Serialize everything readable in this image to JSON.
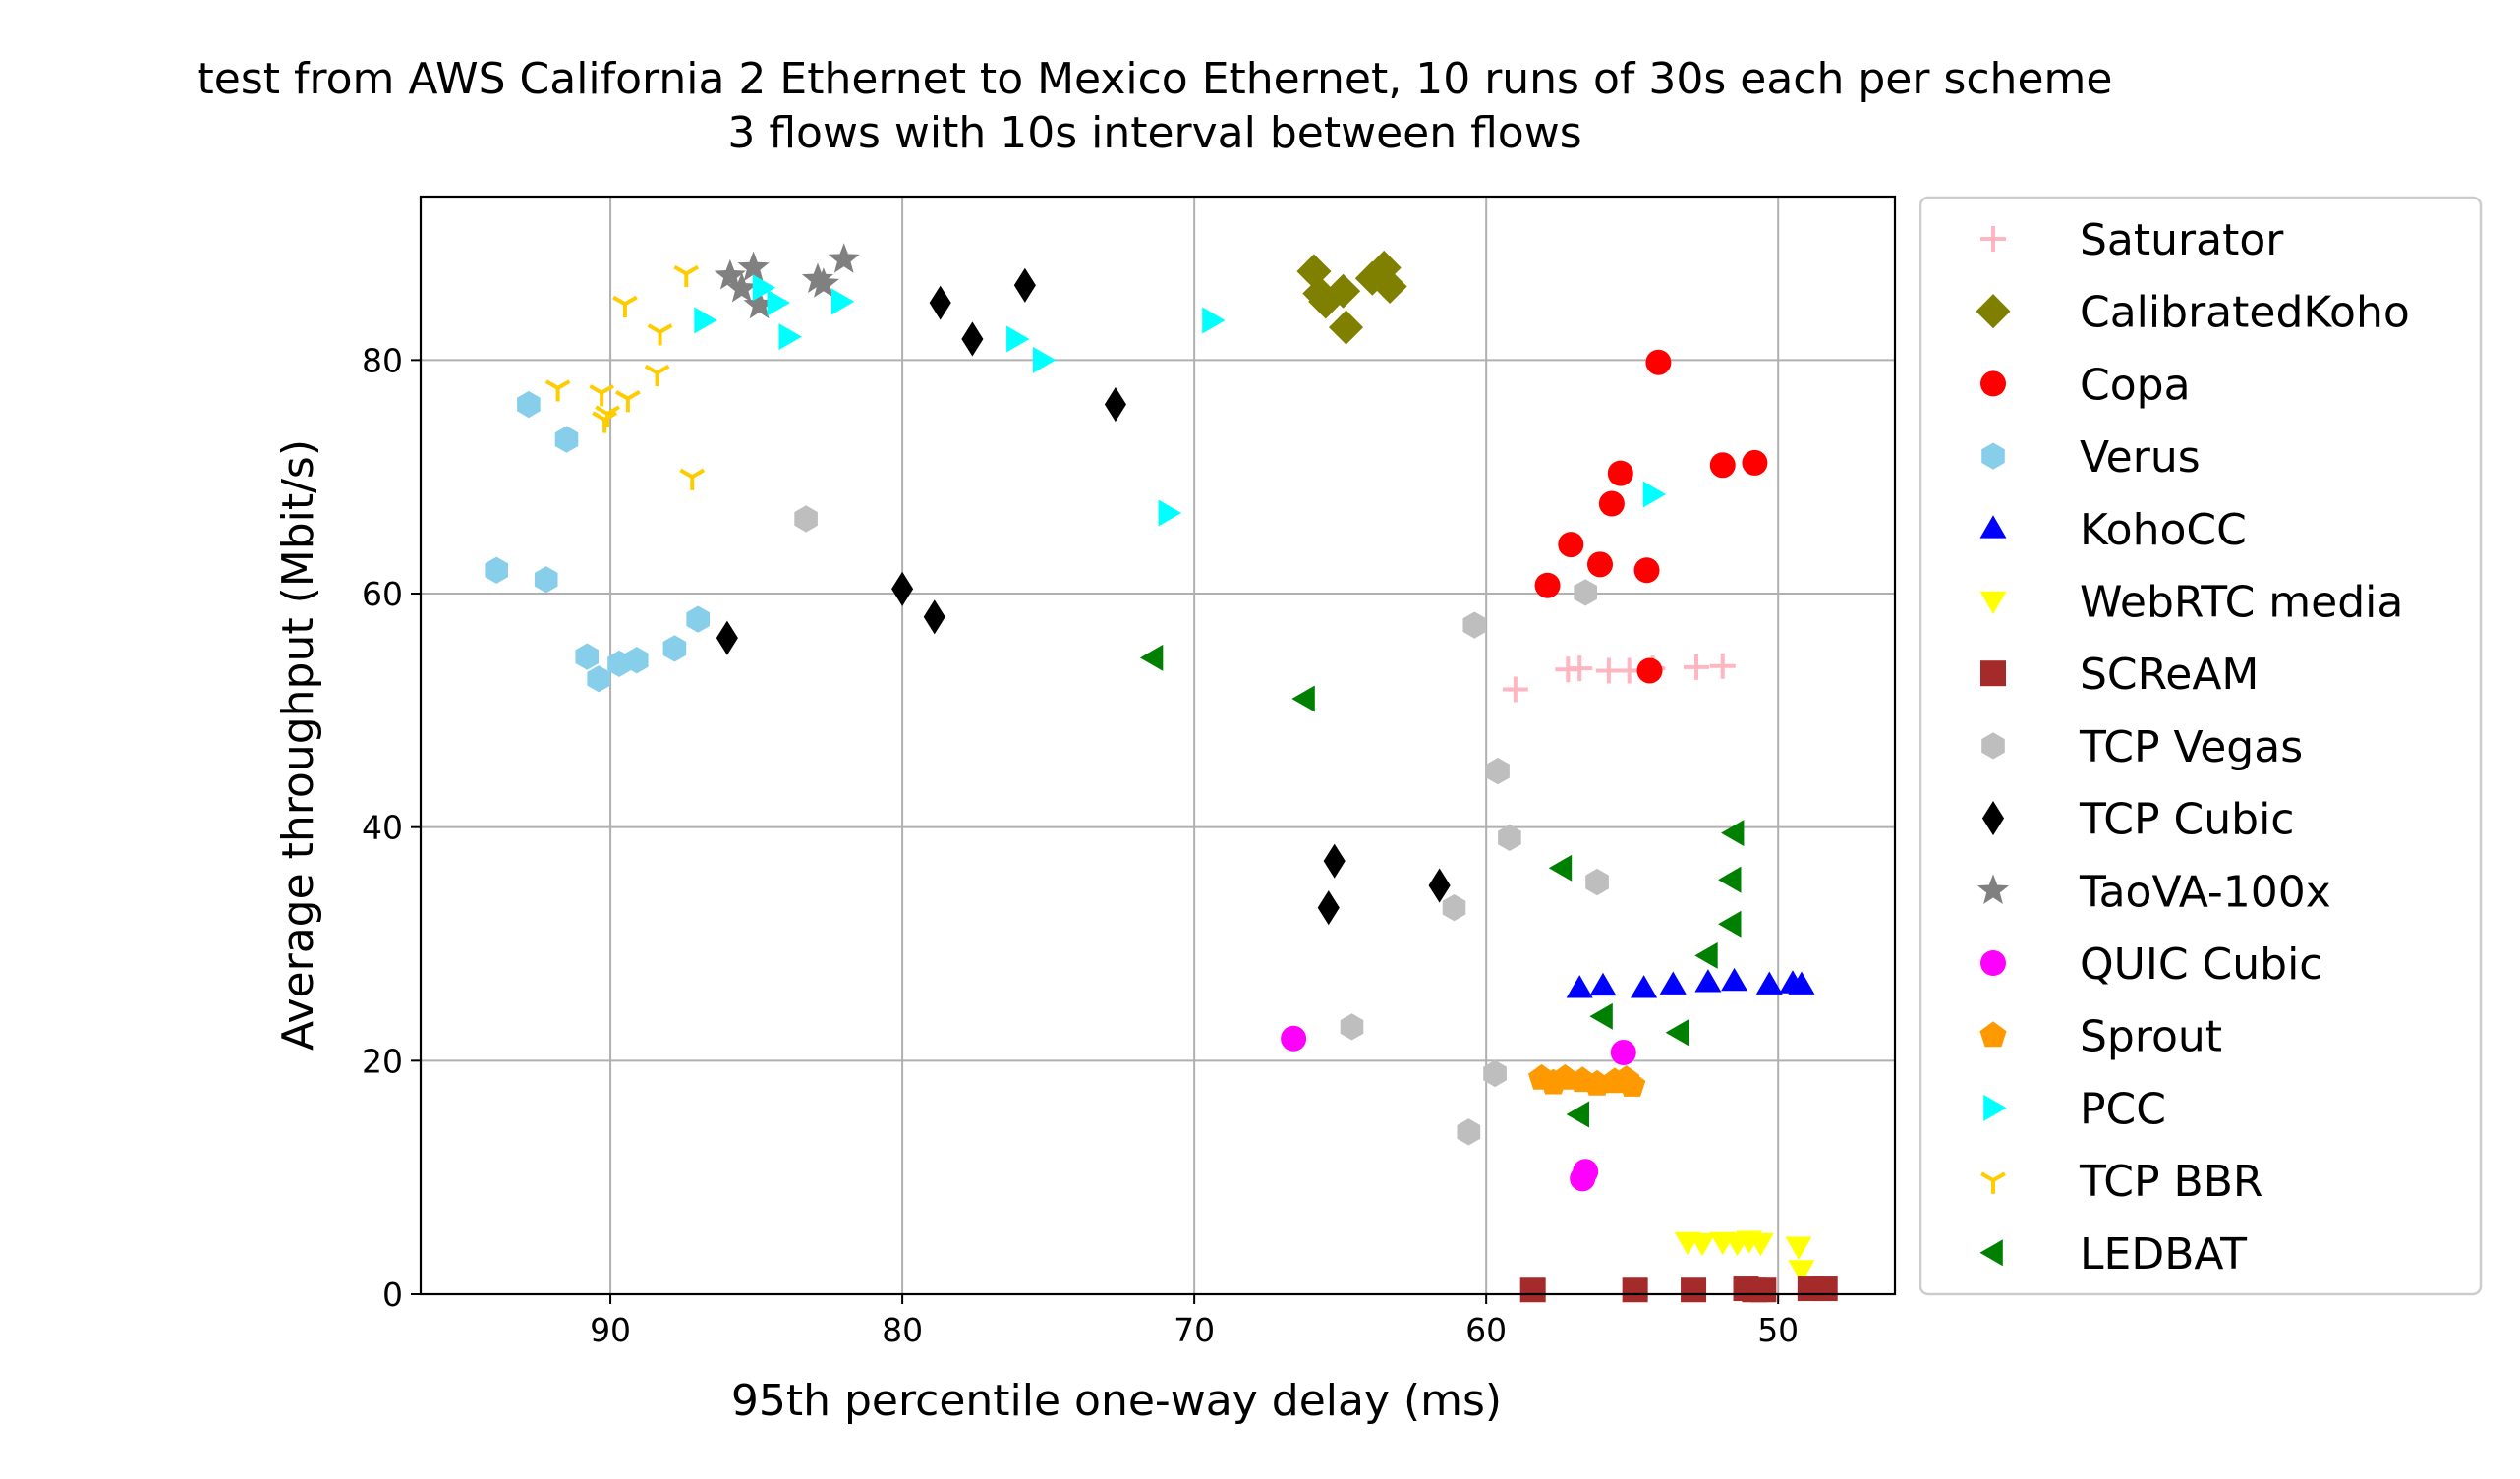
{
  "chart_data": {
    "type": "scatter",
    "title": "test from AWS California 2 Ethernet to Mexico Ethernet, 10 runs of 30s each per scheme",
    "subtitle": "3 flows with 10s interval between flows",
    "xlabel": "95th percentile one-way delay (ms)",
    "ylabel": "Average throughput (Mbit/s)",
    "x_inverted": true,
    "xlim": [
      96.5,
      46
    ],
    "ylim": [
      0,
      94
    ],
    "xticks": [
      90,
      80,
      70,
      60,
      50
    ],
    "yticks": [
      0,
      20,
      40,
      60,
      80
    ],
    "grid": true,
    "legend_position": "outside right",
    "series": [
      {
        "name": "Saturator",
        "marker": "plus",
        "color": "#ffb6c1",
        "points": [
          [
            59.0,
            51.8
          ],
          [
            57.2,
            53.5
          ],
          [
            56.8,
            53.6
          ],
          [
            55.8,
            53.4
          ],
          [
            55.1,
            53.4
          ],
          [
            54.3,
            53.6
          ],
          [
            52.8,
            53.7
          ],
          [
            51.9,
            53.8
          ]
        ]
      },
      {
        "name": "CalibratedKoho",
        "marker": "diamond",
        "color": "#808000",
        "points": [
          [
            65.9,
            87.6
          ],
          [
            65.7,
            85.7
          ],
          [
            65.5,
            85.0
          ],
          [
            64.9,
            85.9
          ],
          [
            64.8,
            82.8
          ],
          [
            63.9,
            87.0
          ],
          [
            63.5,
            87.9
          ],
          [
            63.3,
            86.3
          ]
        ]
      },
      {
        "name": "Copa",
        "marker": "circle",
        "color": "#ff0000",
        "points": [
          [
            54.1,
            79.8
          ],
          [
            55.4,
            70.3
          ],
          [
            51.9,
            71.0
          ],
          [
            50.8,
            71.2
          ],
          [
            55.7,
            67.7
          ],
          [
            57.1,
            64.2
          ],
          [
            56.1,
            62.5
          ],
          [
            54.5,
            62.0
          ],
          [
            57.9,
            60.7
          ],
          [
            54.4,
            53.4
          ]
        ]
      },
      {
        "name": "Verus",
        "marker": "hexagon",
        "color": "#87ceeb",
        "points": [
          [
            92.8,
            76.2
          ],
          [
            91.5,
            73.2
          ],
          [
            93.9,
            62.0
          ],
          [
            92.2,
            61.2
          ],
          [
            90.8,
            54.6
          ],
          [
            90.4,
            52.7
          ],
          [
            89.7,
            54.0
          ],
          [
            89.1,
            54.3
          ],
          [
            87.8,
            55.3
          ],
          [
            87.0,
            57.8
          ]
        ]
      },
      {
        "name": "KohoCC",
        "marker": "triangle-up",
        "color": "#0000ff",
        "points": [
          [
            56.8,
            26.2
          ],
          [
            56.0,
            26.4
          ],
          [
            54.6,
            26.2
          ],
          [
            53.6,
            26.5
          ],
          [
            52.4,
            26.7
          ],
          [
            51.5,
            26.8
          ],
          [
            50.3,
            26.5
          ],
          [
            49.5,
            26.6
          ],
          [
            49.2,
            26.5
          ]
        ]
      },
      {
        "name": "WebRTC media",
        "marker": "triangle-down",
        "color": "#ffff00",
        "points": [
          [
            53.1,
            4.5
          ],
          [
            52.6,
            4.4
          ],
          [
            51.9,
            4.5
          ],
          [
            51.4,
            4.4
          ],
          [
            51.0,
            4.6
          ],
          [
            50.6,
            4.4
          ],
          [
            49.3,
            4.1
          ],
          [
            49.2,
            2.1
          ]
        ]
      },
      {
        "name": "SCReAM",
        "marker": "square",
        "color": "#a52a2a",
        "points": [
          [
            58.4,
            0.4
          ],
          [
            54.9,
            0.4
          ],
          [
            52.9,
            0.4
          ],
          [
            51.1,
            0.5
          ],
          [
            50.8,
            0.4
          ],
          [
            50.5,
            0.4
          ],
          [
            48.9,
            0.5
          ],
          [
            48.4,
            0.5
          ]
        ]
      },
      {
        "name": "TCP Vegas",
        "marker": "hexagon",
        "color": "#bebebe",
        "points": [
          [
            83.3,
            66.4
          ],
          [
            60.4,
            57.3
          ],
          [
            56.6,
            60.1
          ],
          [
            59.6,
            44.8
          ],
          [
            59.2,
            39.1
          ],
          [
            56.2,
            35.3
          ],
          [
            61.1,
            33.1
          ],
          [
            64.6,
            22.9
          ],
          [
            59.7,
            18.9
          ],
          [
            60.6,
            13.9
          ]
        ]
      },
      {
        "name": "TCP Cubic",
        "marker": "thin-diamond",
        "color": "#000000",
        "points": [
          [
            78.7,
            84.9
          ],
          [
            77.6,
            81.8
          ],
          [
            75.8,
            86.4
          ],
          [
            72.7,
            76.2
          ],
          [
            80.0,
            60.4
          ],
          [
            78.9,
            58.0
          ],
          [
            86.0,
            56.2
          ],
          [
            65.2,
            37.1
          ],
          [
            65.4,
            33.1
          ],
          [
            61.6,
            35.0
          ]
        ]
      },
      {
        "name": "TaoVA-100x",
        "marker": "star",
        "color": "#808080",
        "points": [
          [
            85.9,
            87.2
          ],
          [
            85.5,
            86.1
          ],
          [
            85.1,
            87.9
          ],
          [
            84.9,
            84.7
          ],
          [
            82.9,
            86.9
          ],
          [
            82.7,
            86.5
          ],
          [
            82.0,
            88.6
          ]
        ]
      },
      {
        "name": "QUIC Cubic",
        "marker": "circle",
        "color": "#ff00ff",
        "points": [
          [
            66.6,
            21.9
          ],
          [
            55.3,
            20.7
          ],
          [
            56.6,
            10.5
          ],
          [
            56.7,
            9.9
          ]
        ]
      },
      {
        "name": "Sprout",
        "marker": "pentagon",
        "color": "#ff9900",
        "points": [
          [
            58.1,
            18.5
          ],
          [
            57.7,
            18.1
          ],
          [
            57.3,
            18.5
          ],
          [
            56.7,
            18.3
          ],
          [
            56.2,
            18.0
          ],
          [
            55.6,
            18.2
          ],
          [
            55.2,
            18.4
          ],
          [
            55.0,
            17.9
          ]
        ]
      },
      {
        "name": "PCC",
        "marker": "triangle-right",
        "color": "#00ffff",
        "points": [
          [
            84.8,
            86.2
          ],
          [
            84.3,
            84.9
          ],
          [
            82.1,
            85.0
          ],
          [
            83.9,
            82.0
          ],
          [
            86.8,
            83.4
          ],
          [
            76.1,
            81.8
          ],
          [
            75.2,
            80.0
          ],
          [
            69.4,
            83.4
          ],
          [
            70.9,
            66.9
          ],
          [
            54.3,
            68.5
          ]
        ]
      },
      {
        "name": "TCP BBR",
        "marker": "tri-down",
        "color": "#ffcc00",
        "points": [
          [
            87.4,
            87.4
          ],
          [
            89.5,
            84.8
          ],
          [
            88.3,
            82.4
          ],
          [
            91.8,
            77.6
          ],
          [
            90.3,
            77.2
          ],
          [
            89.4,
            76.7
          ],
          [
            88.4,
            78.9
          ],
          [
            90.1,
            75.4
          ],
          [
            90.2,
            74.9
          ],
          [
            87.2,
            70.0
          ]
        ]
      },
      {
        "name": "LEDBAT",
        "marker": "triangle-left",
        "color": "#008000",
        "points": [
          [
            71.4,
            54.5
          ],
          [
            66.2,
            51.0
          ],
          [
            51.5,
            39.5
          ],
          [
            57.4,
            36.5
          ],
          [
            51.6,
            35.5
          ],
          [
            51.6,
            31.7
          ],
          [
            52.4,
            29.0
          ],
          [
            53.4,
            22.4
          ],
          [
            56.0,
            23.8
          ],
          [
            56.8,
            15.4
          ]
        ]
      }
    ]
  }
}
